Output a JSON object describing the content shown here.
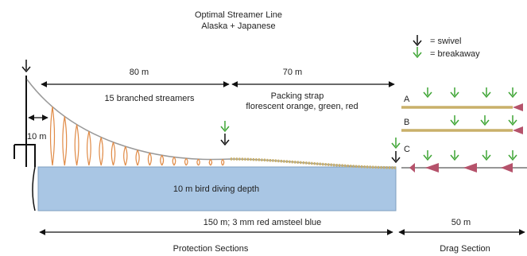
{
  "title": {
    "line1": "Optimal Streamer Line",
    "line2": "Alaska + Japanese"
  },
  "legend": {
    "swivel": "= swivel",
    "breakaway": "= breakaway"
  },
  "labels": {
    "dist_80": "80 m",
    "dist_70": "70 m",
    "branched": "15 branched streamers",
    "strap_line1": "Packing strap",
    "strap_line2": "florescent orange, green, red",
    "pole_10m": "10 m",
    "diving_depth": "10 m bird diving depth",
    "line_spec": "150 m;    3 mm red amsteel blue",
    "dist_50": "50 m",
    "protection": "Protection Sections",
    "drag": "Drag Section",
    "option_a": "A",
    "option_b": "B",
    "option_c": "C"
  },
  "colors": {
    "water": "#a9c6e4",
    "water_border": "#7f9fbf",
    "streamer": "#e08a45",
    "strap": "#c9b06a",
    "breakaway": "#3fa535",
    "swivel": "#1a1a1a",
    "drag_cone": "#b5526b",
    "main_line": "#999999"
  }
}
